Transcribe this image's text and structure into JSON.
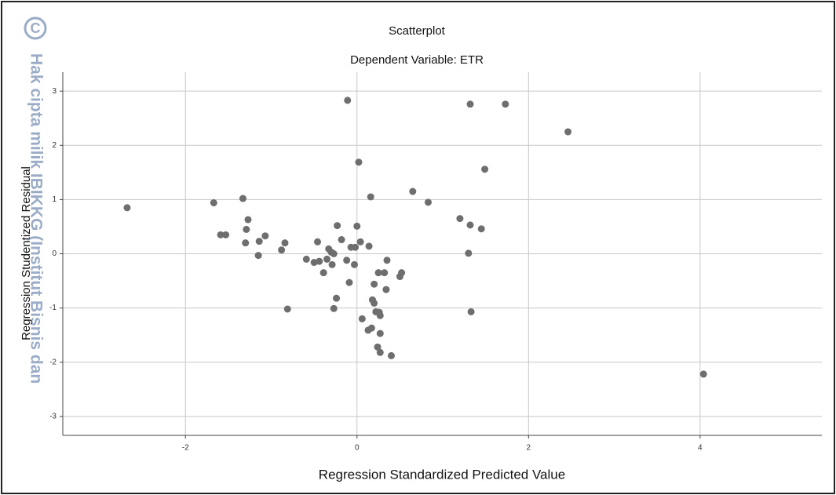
{
  "chart_data": {
    "type": "scatter",
    "title": "Scatterplot",
    "subtitle": "Dependent Variable: ETR",
    "x_label": "Regression Standardized Predicted Value",
    "y_label": "Regression Studentized Residual",
    "color": "#6e6e6e",
    "grid": true,
    "xlim": [
      -3.43,
      5.42
    ],
    "ylim": [
      -3.35,
      3.35
    ],
    "xticks": [
      -2,
      0,
      2,
      4
    ],
    "yticks": [
      -3,
      -2,
      -1,
      0,
      1,
      2,
      3
    ],
    "series": [
      {
        "x": [
          -2.68,
          -1.67,
          -1.33,
          -1.27,
          -1.29,
          -1.3,
          -1.59,
          -1.53,
          -1.07,
          -1.14,
          -1.15,
          -0.84,
          -0.88,
          -0.81,
          -0.59,
          -0.5,
          -0.46,
          -0.44,
          -0.39,
          -0.35,
          -0.33,
          -0.3,
          -0.27,
          -0.29,
          -0.23,
          -0.18,
          -0.12,
          -0.09,
          -0.07,
          -0.03,
          -0.02,
          0.0,
          0.04,
          0.14,
          -0.11,
          0.02,
          0.16,
          -0.24,
          -0.27,
          0.06,
          0.13,
          0.17,
          0.18,
          0.2,
          0.2,
          0.22,
          0.26,
          0.27,
          0.27,
          0.24,
          0.27,
          0.4,
          0.25,
          0.32,
          0.35,
          0.34,
          0.5,
          0.52,
          0.65,
          0.83,
          1.2,
          1.32,
          1.45,
          1.3,
          1.33,
          1.32,
          1.49,
          1.73,
          2.46,
          4.04
        ],
        "values": [
          0.85,
          0.94,
          1.02,
          0.63,
          0.45,
          0.2,
          0.35,
          0.35,
          0.33,
          0.23,
          -0.03,
          0.2,
          0.07,
          -1.02,
          -0.1,
          -0.16,
          0.22,
          -0.14,
          -0.35,
          -0.1,
          0.09,
          0.03,
          0.0,
          -0.2,
          0.52,
          0.26,
          -0.12,
          -0.53,
          0.12,
          -0.2,
          0.12,
          0.51,
          0.22,
          0.14,
          2.83,
          1.69,
          1.05,
          -0.82,
          -1.01,
          -1.2,
          -1.41,
          -1.37,
          -0.85,
          -0.56,
          -0.91,
          -1.07,
          -1.08,
          -1.14,
          -1.47,
          -1.72,
          -1.82,
          -1.88,
          -0.35,
          -0.35,
          -0.12,
          -0.66,
          -0.42,
          -0.35,
          1.15,
          0.95,
          0.65,
          0.53,
          0.46,
          0.01,
          -1.07,
          2.76,
          1.56,
          2.76,
          2.25,
          -2.22
        ]
      }
    ]
  },
  "watermark": {
    "mark": "C",
    "text": "Hak cipta milik IBIKKG (Institut Bisnis dan"
  }
}
